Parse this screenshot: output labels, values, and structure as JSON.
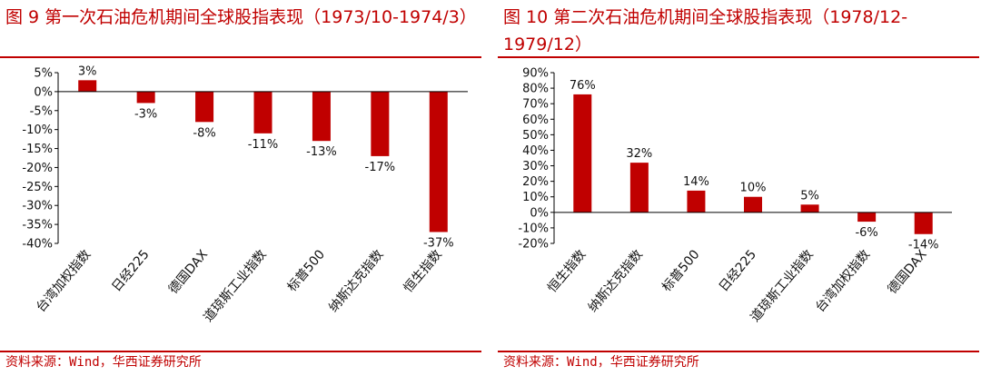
{
  "colors": {
    "accent": "#c00000",
    "bar": "#c00000",
    "axis": "#000000"
  },
  "chart_data": [
    {
      "type": "bar",
      "title": "图 9  第一次石油危机期间全球股指表现（1973/10-1974/3）",
      "source": "资料来源：Wind，华西证券研究所",
      "categories": [
        "台湾加权指数",
        "日经225",
        "德国DAX",
        "道琼斯工业指数",
        "标普500",
        "纳斯达克指数",
        "恒生指数"
      ],
      "values": [
        3,
        -3,
        -8,
        -11,
        -13,
        -17,
        -37
      ],
      "data_labels": [
        "3%",
        "-3%",
        "-8%",
        "-11%",
        "-13%",
        "-17%",
        "-37%"
      ],
      "yticks": [
        "5%",
        "0%",
        "-5%",
        "-10%",
        "-15%",
        "-20%",
        "-25%",
        "-30%",
        "-35%",
        "-40%"
      ],
      "ylim": [
        -40,
        5
      ],
      "xlabel": "",
      "ylabel": "",
      "grid": false
    },
    {
      "type": "bar",
      "title": "图 10  第二次石油危机期间全球股指表现（1978/12-1979/12）",
      "source": "资料来源：Wind，华西证券研究所",
      "categories": [
        "恒生指数",
        "纳斯达克指数",
        "标普500",
        "日经225",
        "道琼斯工业指数",
        "台湾加权指数",
        "德国DAX"
      ],
      "values": [
        76,
        32,
        14,
        10,
        5,
        -6,
        -14
      ],
      "data_labels": [
        "76%",
        "32%",
        "14%",
        "10%",
        "5%",
        "-6%",
        "-14%"
      ],
      "yticks": [
        "90%",
        "80%",
        "70%",
        "60%",
        "50%",
        "40%",
        "30%",
        "20%",
        "10%",
        "0%",
        "-10%",
        "-20%"
      ],
      "ylim": [
        -20,
        90
      ],
      "xlabel": "",
      "ylabel": "",
      "grid": false
    }
  ]
}
